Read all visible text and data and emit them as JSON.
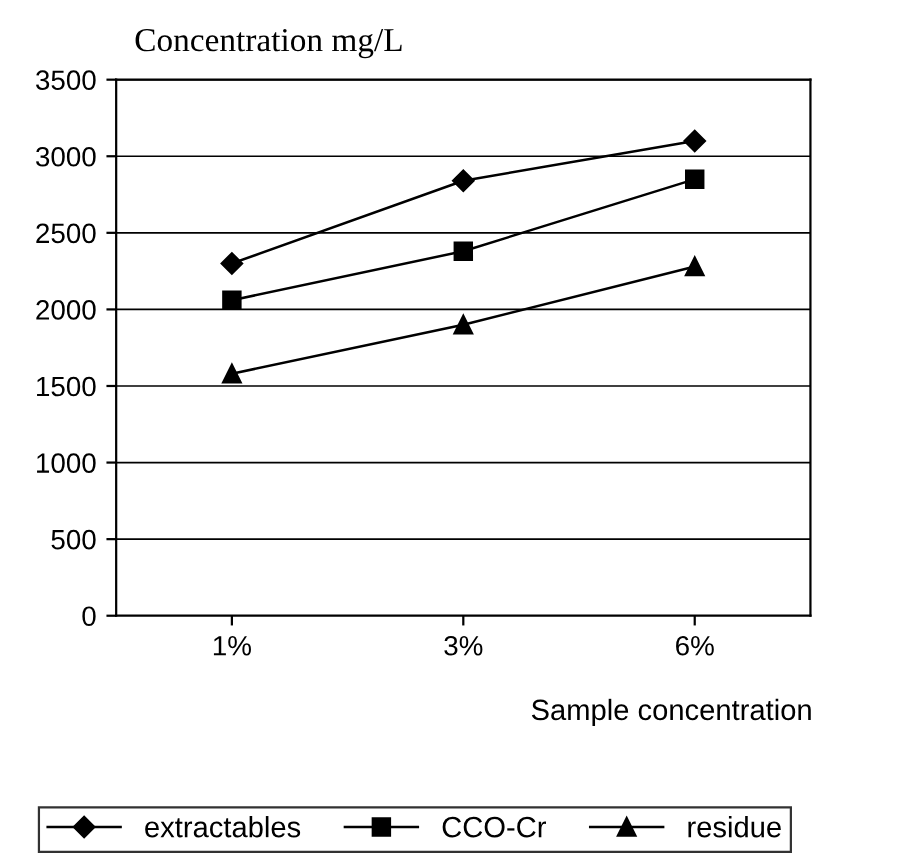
{
  "chart_data": {
    "type": "line",
    "ylabel": "Concentration mg/L",
    "xlabel": "Sample concentration",
    "categories": [
      "1%",
      "3%",
      "6%"
    ],
    "series": [
      {
        "name": "extractables",
        "color": "#000000",
        "marker": "diamond",
        "values": [
          2300,
          2840,
          3100
        ]
      },
      {
        "name": "CCO-Cr",
        "color": "#000000",
        "marker": "square",
        "values": [
          2060,
          2380,
          2850
        ]
      },
      {
        "name": "residue",
        "color": "#000000",
        "marker": "triangle",
        "values": [
          1580,
          1900,
          2280
        ]
      }
    ],
    "ylim": [
      0,
      3500
    ],
    "yticks": [
      0,
      500,
      1000,
      1500,
      2000,
      2500,
      3000,
      3500
    ],
    "grid": "y",
    "legend": "bottom",
    "line_style": "solid"
  }
}
